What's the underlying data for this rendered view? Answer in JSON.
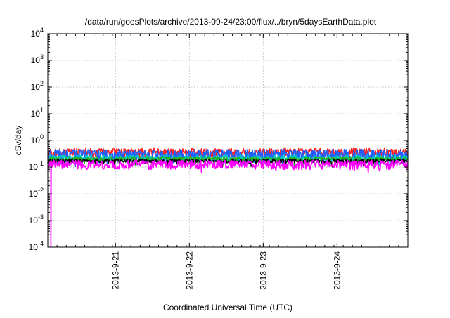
{
  "chart_data": {
    "type": "line",
    "title": "/data/run/goesPlots/archive/2013-09-24/23:00/flux/../bryn/5daysEarthData.plot",
    "xlabel": "Coordinated Universal Time (UTC)",
    "ylabel": "cSv/day",
    "yscale": "log",
    "ylim": [
      0.0001,
      10000
    ],
    "xlim": [
      "2013-09-20T02:00",
      "2013-09-24T23:00"
    ],
    "y_ticks": [
      {
        "value": 0.0001,
        "base": "10",
        "exp": "-4"
      },
      {
        "value": 0.001,
        "base": "10",
        "exp": "-3"
      },
      {
        "value": 0.01,
        "base": "10",
        "exp": "-2"
      },
      {
        "value": 0.1,
        "base": "10",
        "exp": "-1"
      },
      {
        "value": 1,
        "base": "10",
        "exp": "0"
      },
      {
        "value": 10,
        "base": "10",
        "exp": "1"
      },
      {
        "value": 100,
        "base": "10",
        "exp": "2"
      },
      {
        "value": 1000,
        "base": "10",
        "exp": "3"
      },
      {
        "value": 10000,
        "base": "10",
        "exp": "4"
      }
    ],
    "x_ticks": [
      {
        "value": "2013-09-21",
        "label": "2013-9-21"
      },
      {
        "value": "2013-09-22",
        "label": "2013-9-22"
      },
      {
        "value": "2013-09-23",
        "label": "2013-9-23"
      },
      {
        "value": "2013-09-24",
        "label": "2013-9-24"
      }
    ],
    "grid": true,
    "legend": "none",
    "series": [
      {
        "color": "#ff2020",
        "base": 0.36,
        "spread": 0.14
      },
      {
        "color": "#2060ff",
        "base": 0.3,
        "spread": 0.16
      },
      {
        "color": "#00c8c8",
        "base": 0.22,
        "spread": 0.06
      },
      {
        "color": "#20b020",
        "base": 0.2,
        "spread": 0.04
      },
      {
        "color": "#000000",
        "base": 0.17,
        "spread": 0.03
      },
      {
        "color": "#ff00ff",
        "base": 0.13,
        "spread": 0.05,
        "dropout_at": "2013-09-20T03:00",
        "dropout_value": 0.0001
      }
    ]
  }
}
